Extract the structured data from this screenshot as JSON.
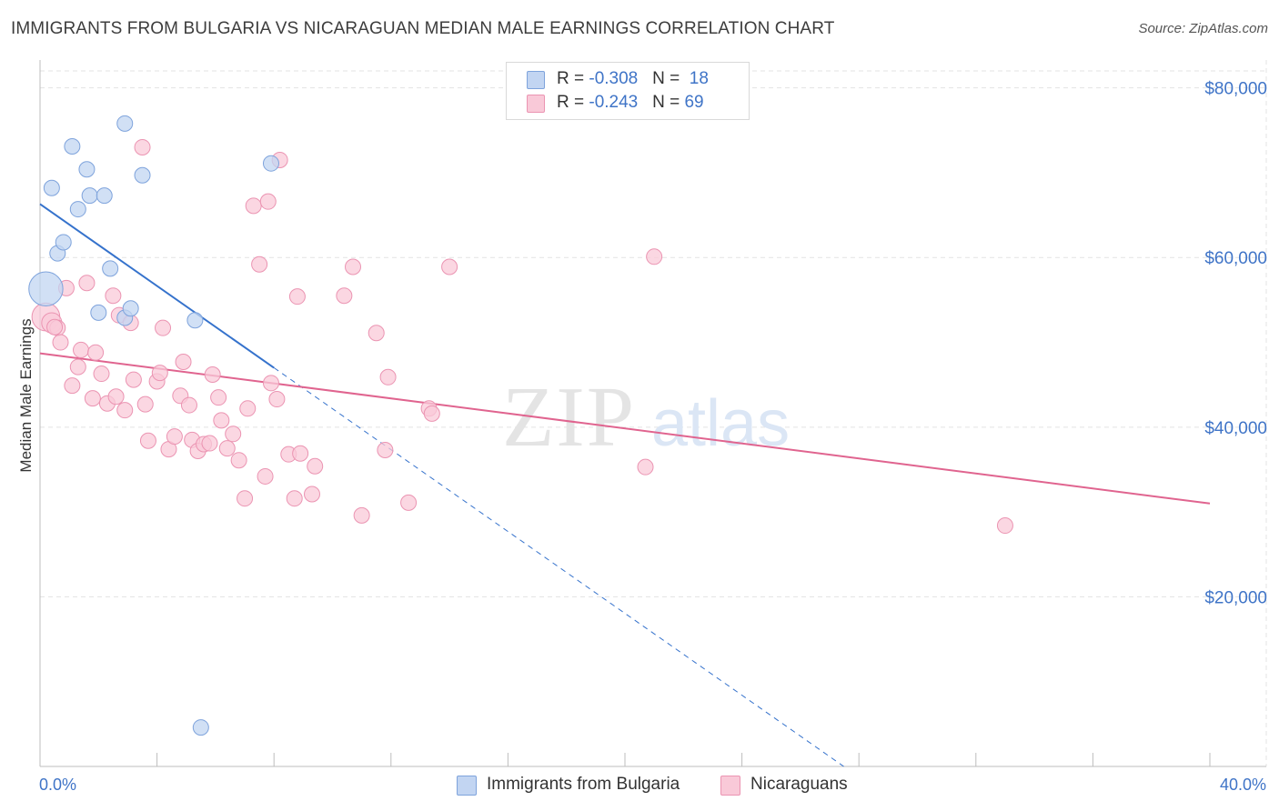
{
  "header": {
    "title": "IMMIGRANTS FROM BULGARIA VS NICARAGUAN MEDIAN MALE EARNINGS CORRELATION CHART",
    "source": "Source: ZipAtlas.com"
  },
  "watermark": {
    "zip": "ZIP",
    "atlas": "atlas"
  },
  "legend_top": [
    {
      "r_label": "R = ",
      "r_value": "-0.308",
      "n_label": "N = ",
      "n_value": "18"
    },
    {
      "r_label": "R = ",
      "r_value": "-0.243",
      "n_label": "N = ",
      "n_value": "69"
    }
  ],
  "legend_bottom": [
    {
      "label": "Immigrants from Bulgaria"
    },
    {
      "label": "Nicaraguans"
    }
  ],
  "colors": {
    "blue_fill": "#c2d5f2",
    "blue_stroke": "#7ea3dc",
    "blue_line": "#3572cc",
    "pink_fill": "#f9c9d8",
    "pink_stroke": "#eb94b2",
    "pink_line": "#e0648f",
    "tick_text": "#3f74c7",
    "grid": "#e3e3e3"
  },
  "chart_data": {
    "type": "scatter",
    "title": "IMMIGRANTS FROM BULGARIA VS NICARAGUAN MEDIAN MALE EARNINGS CORRELATION CHART",
    "xlabel": "",
    "ylabel": "Median Male Earnings",
    "xlim": [
      0,
      40
    ],
    "ylim": [
      0,
      82000
    ],
    "x_tick_labels": [
      "0.0%",
      "40.0%"
    ],
    "y_ticks": [
      20000,
      40000,
      60000,
      80000
    ],
    "y_tick_labels": [
      "$20,000",
      "$40,000",
      "$60,000",
      "$80,000"
    ],
    "grid": true,
    "legend_position": "top-center",
    "series": [
      {
        "name": "Immigrants from Bulgaria",
        "color": "#c2d5f2",
        "points": [
          [
            0.2,
            56300,
            2.2
          ],
          [
            0.4,
            68200,
            1
          ],
          [
            0.6,
            60500,
            1
          ],
          [
            0.8,
            61800,
            1
          ],
          [
            1.1,
            73100,
            1
          ],
          [
            1.3,
            65700,
            1
          ],
          [
            1.6,
            70400,
            1
          ],
          [
            1.7,
            67300,
            1
          ],
          [
            2.2,
            67300,
            1
          ],
          [
            2.4,
            58700,
            1
          ],
          [
            2.0,
            53500,
            1
          ],
          [
            2.9,
            52900,
            1
          ],
          [
            3.1,
            54000,
            1
          ],
          [
            2.9,
            75800,
            1
          ],
          [
            3.5,
            69700,
            1
          ],
          [
            5.3,
            52600,
            1
          ],
          [
            7.9,
            71100,
            1
          ],
          [
            5.5,
            4600,
            1
          ]
        ],
        "trend": {
          "x0": 0,
          "y0": 66300,
          "x1": 8.0,
          "y1": 47000,
          "dash_to_x": 30.5,
          "dash_to_y": -6000
        }
      },
      {
        "name": "Nicaraguans",
        "color": "#f9c9d8",
        "points": [
          [
            0.2,
            53000,
            1.8
          ],
          [
            0.4,
            52300,
            1.3
          ],
          [
            0.6,
            51700,
            1
          ],
          [
            0.7,
            50000,
            1
          ],
          [
            0.9,
            56400,
            1
          ],
          [
            1.1,
            44900,
            1
          ],
          [
            1.3,
            47100,
            1
          ],
          [
            1.4,
            49100,
            1
          ],
          [
            1.6,
            57000,
            1
          ],
          [
            1.8,
            43400,
            1
          ],
          [
            1.9,
            48800,
            1
          ],
          [
            2.1,
            46300,
            1
          ],
          [
            2.3,
            42800,
            1
          ],
          [
            2.5,
            55500,
            1
          ],
          [
            2.6,
            43600,
            1
          ],
          [
            2.7,
            53200,
            1
          ],
          [
            2.9,
            42000,
            1
          ],
          [
            3.1,
            52300,
            1
          ],
          [
            3.2,
            45600,
            1
          ],
          [
            3.5,
            73000,
            1
          ],
          [
            3.6,
            42700,
            1
          ],
          [
            3.7,
            38400,
            1
          ],
          [
            4.0,
            45400,
            1
          ],
          [
            4.1,
            46400,
            1
          ],
          [
            4.2,
            51700,
            1
          ],
          [
            4.4,
            37400,
            1
          ],
          [
            4.6,
            38900,
            1
          ],
          [
            4.8,
            43700,
            1
          ],
          [
            4.9,
            47700,
            1
          ],
          [
            5.1,
            42600,
            1
          ],
          [
            5.2,
            38500,
            1
          ],
          [
            5.4,
            37200,
            1
          ],
          [
            5.6,
            38000,
            1
          ],
          [
            5.8,
            38100,
            1
          ],
          [
            5.9,
            46200,
            1
          ],
          [
            6.1,
            43500,
            1
          ],
          [
            6.2,
            40800,
            1
          ],
          [
            6.4,
            37500,
            1
          ],
          [
            6.6,
            39200,
            1
          ],
          [
            6.8,
            36100,
            1
          ],
          [
            7.0,
            31600,
            1
          ],
          [
            7.1,
            42200,
            1
          ],
          [
            7.3,
            66100,
            1
          ],
          [
            7.5,
            59200,
            1
          ],
          [
            7.7,
            34200,
            1
          ],
          [
            7.8,
            66600,
            1
          ],
          [
            7.9,
            45200,
            1
          ],
          [
            8.1,
            43300,
            1
          ],
          [
            8.2,
            71500,
            1
          ],
          [
            8.5,
            36800,
            1
          ],
          [
            8.7,
            31600,
            1
          ],
          [
            8.8,
            55400,
            1
          ],
          [
            8.9,
            36900,
            1
          ],
          [
            9.3,
            32100,
            1
          ],
          [
            9.4,
            35400,
            1
          ],
          [
            10.4,
            55500,
            1
          ],
          [
            10.7,
            58900,
            1
          ],
          [
            11.0,
            29600,
            1
          ],
          [
            11.5,
            51100,
            1
          ],
          [
            11.8,
            37300,
            1
          ],
          [
            11.9,
            45900,
            1
          ],
          [
            12.6,
            31100,
            1
          ],
          [
            13.3,
            42200,
            1
          ],
          [
            13.4,
            41600,
            1
          ],
          [
            14.0,
            58900,
            1
          ],
          [
            20.7,
            35300,
            1
          ],
          [
            21.0,
            60100,
            1
          ],
          [
            33.0,
            28400,
            1
          ],
          [
            0.5,
            51800,
            1
          ]
        ],
        "trend": {
          "x0": 0,
          "y0": 48700,
          "x1": 40,
          "y1": 31000
        }
      }
    ]
  }
}
